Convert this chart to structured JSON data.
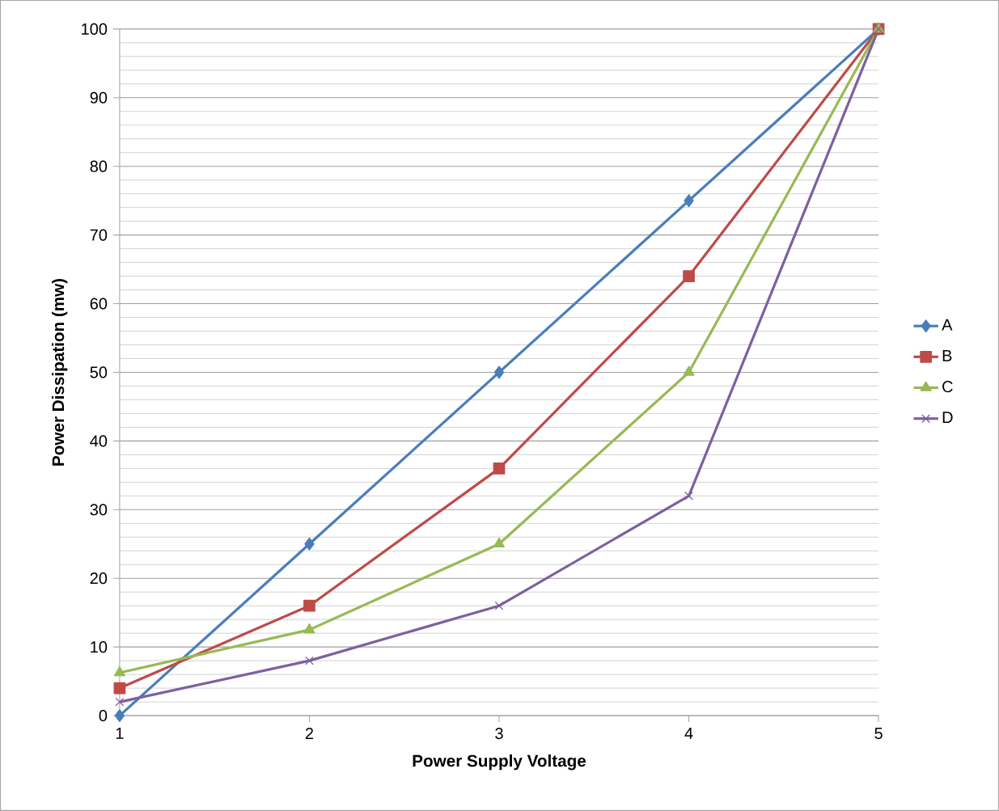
{
  "chart_data": {
    "type": "line",
    "xlabel": "Power Supply Voltage",
    "ylabel": "Power Dissipation (mw)",
    "x": [
      1,
      2,
      3,
      4,
      5
    ],
    "xlim": [
      1,
      5
    ],
    "xticks": [
      1,
      2,
      3,
      4,
      5
    ],
    "ylim": [
      0,
      100
    ],
    "yticks": [
      0,
      10,
      20,
      30,
      40,
      50,
      60,
      70,
      80,
      90,
      100
    ],
    "grid": "y",
    "legend": "right",
    "series": [
      {
        "name": "A",
        "color": "#4a7ebb",
        "marker": "diamond",
        "values": [
          0,
          25,
          50,
          75,
          100
        ]
      },
      {
        "name": "B",
        "color": "#be4b48",
        "marker": "square",
        "values": [
          4,
          16,
          36,
          64,
          100
        ]
      },
      {
        "name": "C",
        "color": "#98b954",
        "marker": "triangle",
        "values": [
          6.25,
          12.5,
          25,
          50,
          100
        ]
      },
      {
        "name": "D",
        "color": "#7d60a0",
        "marker": "cross",
        "values": [
          2,
          8,
          16,
          32,
          100
        ]
      }
    ]
  }
}
